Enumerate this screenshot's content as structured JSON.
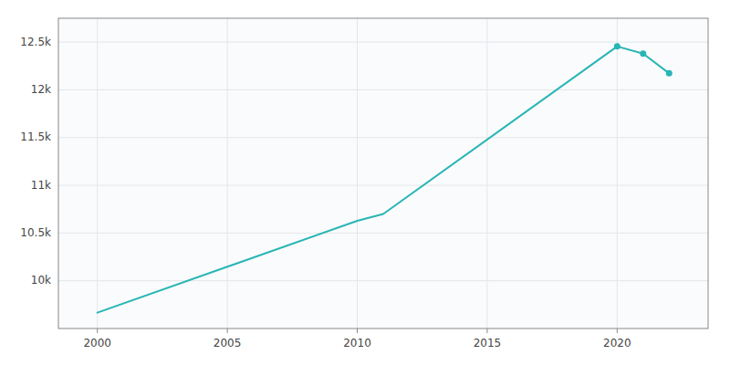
{
  "chart_data": {
    "type": "line",
    "x": [
      2000,
      2010,
      2011,
      2020,
      2021,
      2022
    ],
    "series": [
      {
        "type": "line",
        "color": "#29b5b5",
        "values": [
          9666,
          10628,
          10700,
          12455,
          12380,
          12173
        ]
      },
      {
        "type": "scatter",
        "marker": "circle",
        "color": "#29b5b5",
        "values": [
          null,
          null,
          null,
          12455,
          12380,
          12173
        ]
      }
    ],
    "xlim": [
      1998.5,
      2023.5
    ],
    "xticks": [
      2000,
      2005,
      2010,
      2015,
      2020
    ],
    "ylim": [
      9500,
      12750
    ],
    "yticks": [
      {
        "value": 10000,
        "label": "10k"
      },
      {
        "value": 10500,
        "label": "10.5k"
      },
      {
        "value": 11000,
        "label": "11k"
      },
      {
        "value": 11500,
        "label": "11.5k"
      },
      {
        "value": 12000,
        "label": "12k"
      },
      {
        "value": 12500,
        "label": "12.5k"
      }
    ],
    "grid": true
  }
}
